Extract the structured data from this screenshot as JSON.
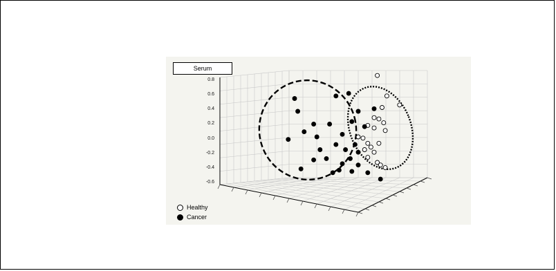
{
  "chart_data": {
    "type": "scatter",
    "title": "Serum",
    "y_ticks": [
      "0.8",
      "0.6",
      "0.4",
      "0.2",
      "0.0",
      "-0.2",
      "-0.4",
      "-0.6"
    ],
    "ylim": [
      -0.6,
      0.8
    ],
    "grid": true,
    "legend_position": "bottom-left",
    "series": [
      {
        "name": "Healthy",
        "marker": "open-circle",
        "color": "#000000",
        "points": [
          [
            0.72,
            0.78
          ],
          [
            0.78,
            0.62
          ],
          [
            0.86,
            0.55
          ],
          [
            0.75,
            0.53
          ],
          [
            0.7,
            0.45
          ],
          [
            0.73,
            0.44
          ],
          [
            0.76,
            0.41
          ],
          [
            0.66,
            0.39
          ],
          [
            0.7,
            0.37
          ],
          [
            0.77,
            0.35
          ],
          [
            0.6,
            0.3
          ],
          [
            0.63,
            0.29
          ],
          [
            0.66,
            0.25
          ],
          [
            0.73,
            0.25
          ],
          [
            0.68,
            0.22
          ],
          [
            0.64,
            0.2
          ],
          [
            0.7,
            0.18
          ],
          [
            0.66,
            0.14
          ],
          [
            0.72,
            0.1
          ],
          [
            0.74,
            0.08
          ],
          [
            0.77,
            0.06
          ]
        ]
      },
      {
        "name": "Cancer",
        "marker": "filled-circle",
        "color": "#000000",
        "points": [
          [
            0.2,
            0.6
          ],
          [
            0.22,
            0.5
          ],
          [
            0.46,
            0.62
          ],
          [
            0.54,
            0.64
          ],
          [
            0.7,
            0.52
          ],
          [
            0.6,
            0.5
          ],
          [
            0.42,
            0.4
          ],
          [
            0.56,
            0.42
          ],
          [
            0.64,
            0.38
          ],
          [
            0.32,
            0.4
          ],
          [
            0.26,
            0.34
          ],
          [
            0.34,
            0.3
          ],
          [
            0.16,
            0.28
          ],
          [
            0.46,
            0.24
          ],
          [
            0.52,
            0.2
          ],
          [
            0.58,
            0.24
          ],
          [
            0.6,
            0.18
          ],
          [
            0.55,
            0.13
          ],
          [
            0.5,
            0.09
          ],
          [
            0.4,
            0.13
          ],
          [
            0.32,
            0.12
          ],
          [
            0.24,
            0.05
          ],
          [
            0.44,
            0.02
          ],
          [
            0.56,
            0.03
          ],
          [
            0.66,
            0.02
          ],
          [
            0.74,
            -0.03
          ],
          [
            0.5,
            0.32
          ],
          [
            0.36,
            0.2
          ],
          [
            0.48,
            0.04
          ],
          [
            0.6,
            0.08
          ]
        ]
      }
    ]
  },
  "legend": {
    "items": [
      {
        "label": "Healthy"
      },
      {
        "label": "Cancer"
      }
    ]
  }
}
